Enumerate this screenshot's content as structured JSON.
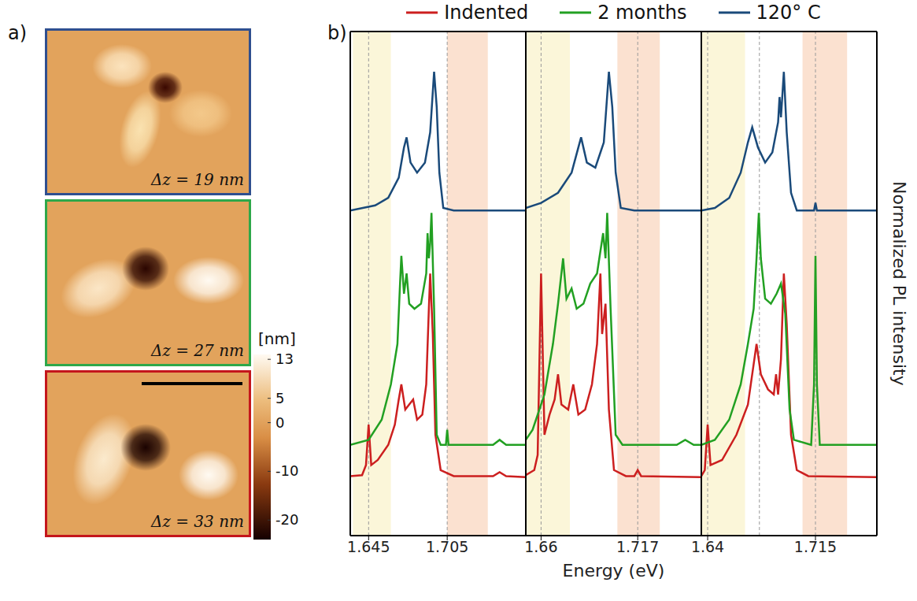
{
  "panel_labels": [
    "a)",
    "b)"
  ],
  "afm_images": [
    {
      "label": "Δz = 19 nm",
      "border": "#2f4f8f"
    },
    {
      "label": "Δz = 27 nm",
      "border": "#2ea84a"
    },
    {
      "label": "Δz = 33 nm",
      "border": "#c4161c"
    }
  ],
  "colorbar": {
    "label": "[nm]",
    "range": [
      -24,
      14
    ],
    "ticks": [
      13,
      5,
      0,
      -10,
      -20
    ]
  },
  "x_label": "Energy (eV)",
  "y_label": "Normalized PL intensity",
  "chart_data": [
    {
      "type": "line",
      "xlim": [
        1.631,
        1.765
      ],
      "xticks": [
        1.645,
        1.705
      ],
      "ylim": [
        0,
        1
      ],
      "tick_labels": "x",
      "legend": "top",
      "shaded": [
        {
          "x": [
            1.633,
            1.662
          ],
          "color": "#fbf6d9"
        },
        {
          "x": [
            1.705,
            1.736
          ],
          "color": "#fbe1d0"
        }
      ],
      "dashed_lines": [
        1.645,
        1.705
      ],
      "series": [
        {
          "name": "Indented",
          "color": "#cc1f1f",
          "x": [
            1.631,
            1.64,
            1.643,
            1.645,
            1.647,
            1.652,
            1.66,
            1.665,
            1.668,
            1.67,
            1.673,
            1.676,
            1.679,
            1.682,
            1.686,
            1.689,
            1.691,
            1.692,
            1.694,
            1.696,
            1.7,
            1.71,
            1.74,
            1.745,
            1.75,
            1.765
          ],
          "values": [
            0.118,
            0.12,
            0.14,
            0.22,
            0.14,
            0.15,
            0.18,
            0.22,
            0.27,
            0.3,
            0.25,
            0.26,
            0.27,
            0.23,
            0.24,
            0.3,
            0.45,
            0.52,
            0.4,
            0.2,
            0.13,
            0.118,
            0.118,
            0.126,
            0.118,
            0.116
          ]
        },
        {
          "name": "2 months",
          "color": "#22a022",
          "x": [
            1.631,
            1.645,
            1.655,
            1.662,
            1.667,
            1.669,
            1.67,
            1.672,
            1.674,
            1.676,
            1.68,
            1.685,
            1.689,
            1.69,
            1.691,
            1.692,
            1.693,
            1.695,
            1.697,
            1.7,
            1.704,
            1.705,
            1.706,
            1.74,
            1.745,
            1.75,
            1.765
          ],
          "values": [
            0.18,
            0.19,
            0.23,
            0.3,
            0.38,
            0.5,
            0.555,
            0.48,
            0.52,
            0.46,
            0.45,
            0.46,
            0.52,
            0.6,
            0.55,
            0.58,
            0.64,
            0.45,
            0.2,
            0.18,
            0.18,
            0.21,
            0.18,
            0.18,
            0.19,
            0.18,
            0.18
          ]
        },
        {
          "name": "120° C",
          "color": "#1a4a7a",
          "x": [
            1.631,
            1.65,
            1.66,
            1.668,
            1.672,
            1.674,
            1.677,
            1.682,
            1.688,
            1.692,
            1.695,
            1.697,
            1.699,
            1.702,
            1.71,
            1.765
          ],
          "values": [
            0.645,
            0.655,
            0.67,
            0.71,
            0.77,
            0.79,
            0.74,
            0.72,
            0.74,
            0.8,
            0.92,
            0.85,
            0.72,
            0.65,
            0.645,
            0.645
          ]
        }
      ]
    },
    {
      "type": "line",
      "xlim": [
        1.651,
        1.7545
      ],
      "xticks": [
        1.66,
        1.717
      ],
      "ylim": [
        0,
        1
      ],
      "tick_labels": "x",
      "shaded": [
        {
          "x": [
            1.651,
            1.677
          ],
          "color": "#fbf6d9"
        },
        {
          "x": [
            1.705,
            1.73
          ],
          "color": "#fbe1d0"
        }
      ],
      "dashed_lines": [
        1.66,
        1.717
      ],
      "series": [
        {
          "name": "Indented",
          "color": "#cc1f1f",
          "x": [
            1.651,
            1.656,
            1.658,
            1.66,
            1.662,
            1.665,
            1.668,
            1.67,
            1.672,
            1.676,
            1.679,
            1.682,
            1.686,
            1.69,
            1.693,
            1.695,
            1.696,
            1.698,
            1.7,
            1.703,
            1.71,
            1.715,
            1.717,
            1.719,
            1.7545
          ],
          "values": [
            0.12,
            0.13,
            0.16,
            0.52,
            0.2,
            0.24,
            0.27,
            0.32,
            0.26,
            0.25,
            0.3,
            0.24,
            0.25,
            0.3,
            0.38,
            0.52,
            0.4,
            0.46,
            0.25,
            0.13,
            0.118,
            0.118,
            0.13,
            0.118,
            0.116
          ]
        },
        {
          "name": "2 months",
          "color": "#22a022",
          "x": [
            1.651,
            1.655,
            1.662,
            1.667,
            1.67,
            1.673,
            1.675,
            1.678,
            1.681,
            1.685,
            1.689,
            1.693,
            1.6966,
            1.698,
            1.699,
            1.701,
            1.704,
            1.708,
            1.74,
            1.745,
            1.75,
            1.7545
          ],
          "values": [
            0.19,
            0.21,
            0.28,
            0.38,
            0.46,
            0.55,
            0.47,
            0.49,
            0.45,
            0.46,
            0.5,
            0.52,
            0.6,
            0.55,
            0.64,
            0.45,
            0.2,
            0.18,
            0.18,
            0.19,
            0.18,
            0.18
          ]
        },
        {
          "name": "120° C",
          "color": "#1a4a7a",
          "x": [
            1.651,
            1.66,
            1.67,
            1.678,
            1.682,
            1.6836,
            1.687,
            1.692,
            1.697,
            1.7,
            1.702,
            1.704,
            1.707,
            1.715,
            1.7545
          ],
          "values": [
            0.65,
            0.66,
            0.68,
            0.72,
            0.77,
            0.79,
            0.74,
            0.73,
            0.78,
            0.92,
            0.85,
            0.72,
            0.65,
            0.645,
            0.645
          ]
        }
      ]
    },
    {
      "type": "line",
      "xlim": [
        1.6356,
        1.7577
      ],
      "xticks": [
        1.64,
        1.715
      ],
      "ylim": [
        0,
        1
      ],
      "tick_labels": "x",
      "shaded": [
        {
          "x": [
            1.636,
            1.666
          ],
          "color": "#fbf6d9"
        },
        {
          "x": [
            1.706,
            1.737
          ],
          "color": "#fbe1d0"
        }
      ],
      "dashed_lines": [
        1.64,
        1.676,
        1.715
      ],
      "series": [
        {
          "name": "Indented",
          "color": "#cc1f1f",
          "x": [
            1.6356,
            1.638,
            1.64,
            1.642,
            1.65,
            1.66,
            1.668,
            1.672,
            1.674,
            1.677,
            1.682,
            1.686,
            1.6876,
            1.689,
            1.691,
            1.693,
            1.695,
            1.698,
            1.702,
            1.71,
            1.7577
          ],
          "values": [
            0.118,
            0.13,
            0.22,
            0.14,
            0.15,
            0.2,
            0.26,
            0.34,
            0.38,
            0.32,
            0.29,
            0.28,
            0.32,
            0.28,
            0.35,
            0.52,
            0.42,
            0.2,
            0.13,
            0.118,
            0.116
          ]
        },
        {
          "name": "2 months",
          "color": "#22a022",
          "x": [
            1.6356,
            1.645,
            1.655,
            1.663,
            1.668,
            1.672,
            1.674,
            1.6756,
            1.677,
            1.68,
            1.684,
            1.688,
            1.691,
            1.694,
            1.697,
            1.7,
            1.712,
            1.714,
            1.715,
            1.716,
            1.718,
            1.7577
          ],
          "values": [
            0.18,
            0.19,
            0.23,
            0.3,
            0.38,
            0.45,
            0.55,
            0.64,
            0.55,
            0.47,
            0.46,
            0.48,
            0.5,
            0.44,
            0.25,
            0.19,
            0.18,
            0.3,
            0.555,
            0.3,
            0.18,
            0.18
          ]
        },
        {
          "name": "120° C",
          "color": "#1a4a7a",
          "x": [
            1.6356,
            1.645,
            1.655,
            1.663,
            1.668,
            1.671,
            1.675,
            1.68,
            1.685,
            1.689,
            1.69,
            1.691,
            1.693,
            1.695,
            1.698,
            1.702,
            1.714,
            1.715,
            1.716,
            1.7577
          ],
          "values": [
            0.645,
            0.65,
            0.67,
            0.72,
            0.78,
            0.81,
            0.77,
            0.74,
            0.76,
            0.82,
            0.87,
            0.83,
            0.92,
            0.8,
            0.68,
            0.645,
            0.645,
            0.66,
            0.645,
            0.645
          ]
        }
      ]
    }
  ]
}
